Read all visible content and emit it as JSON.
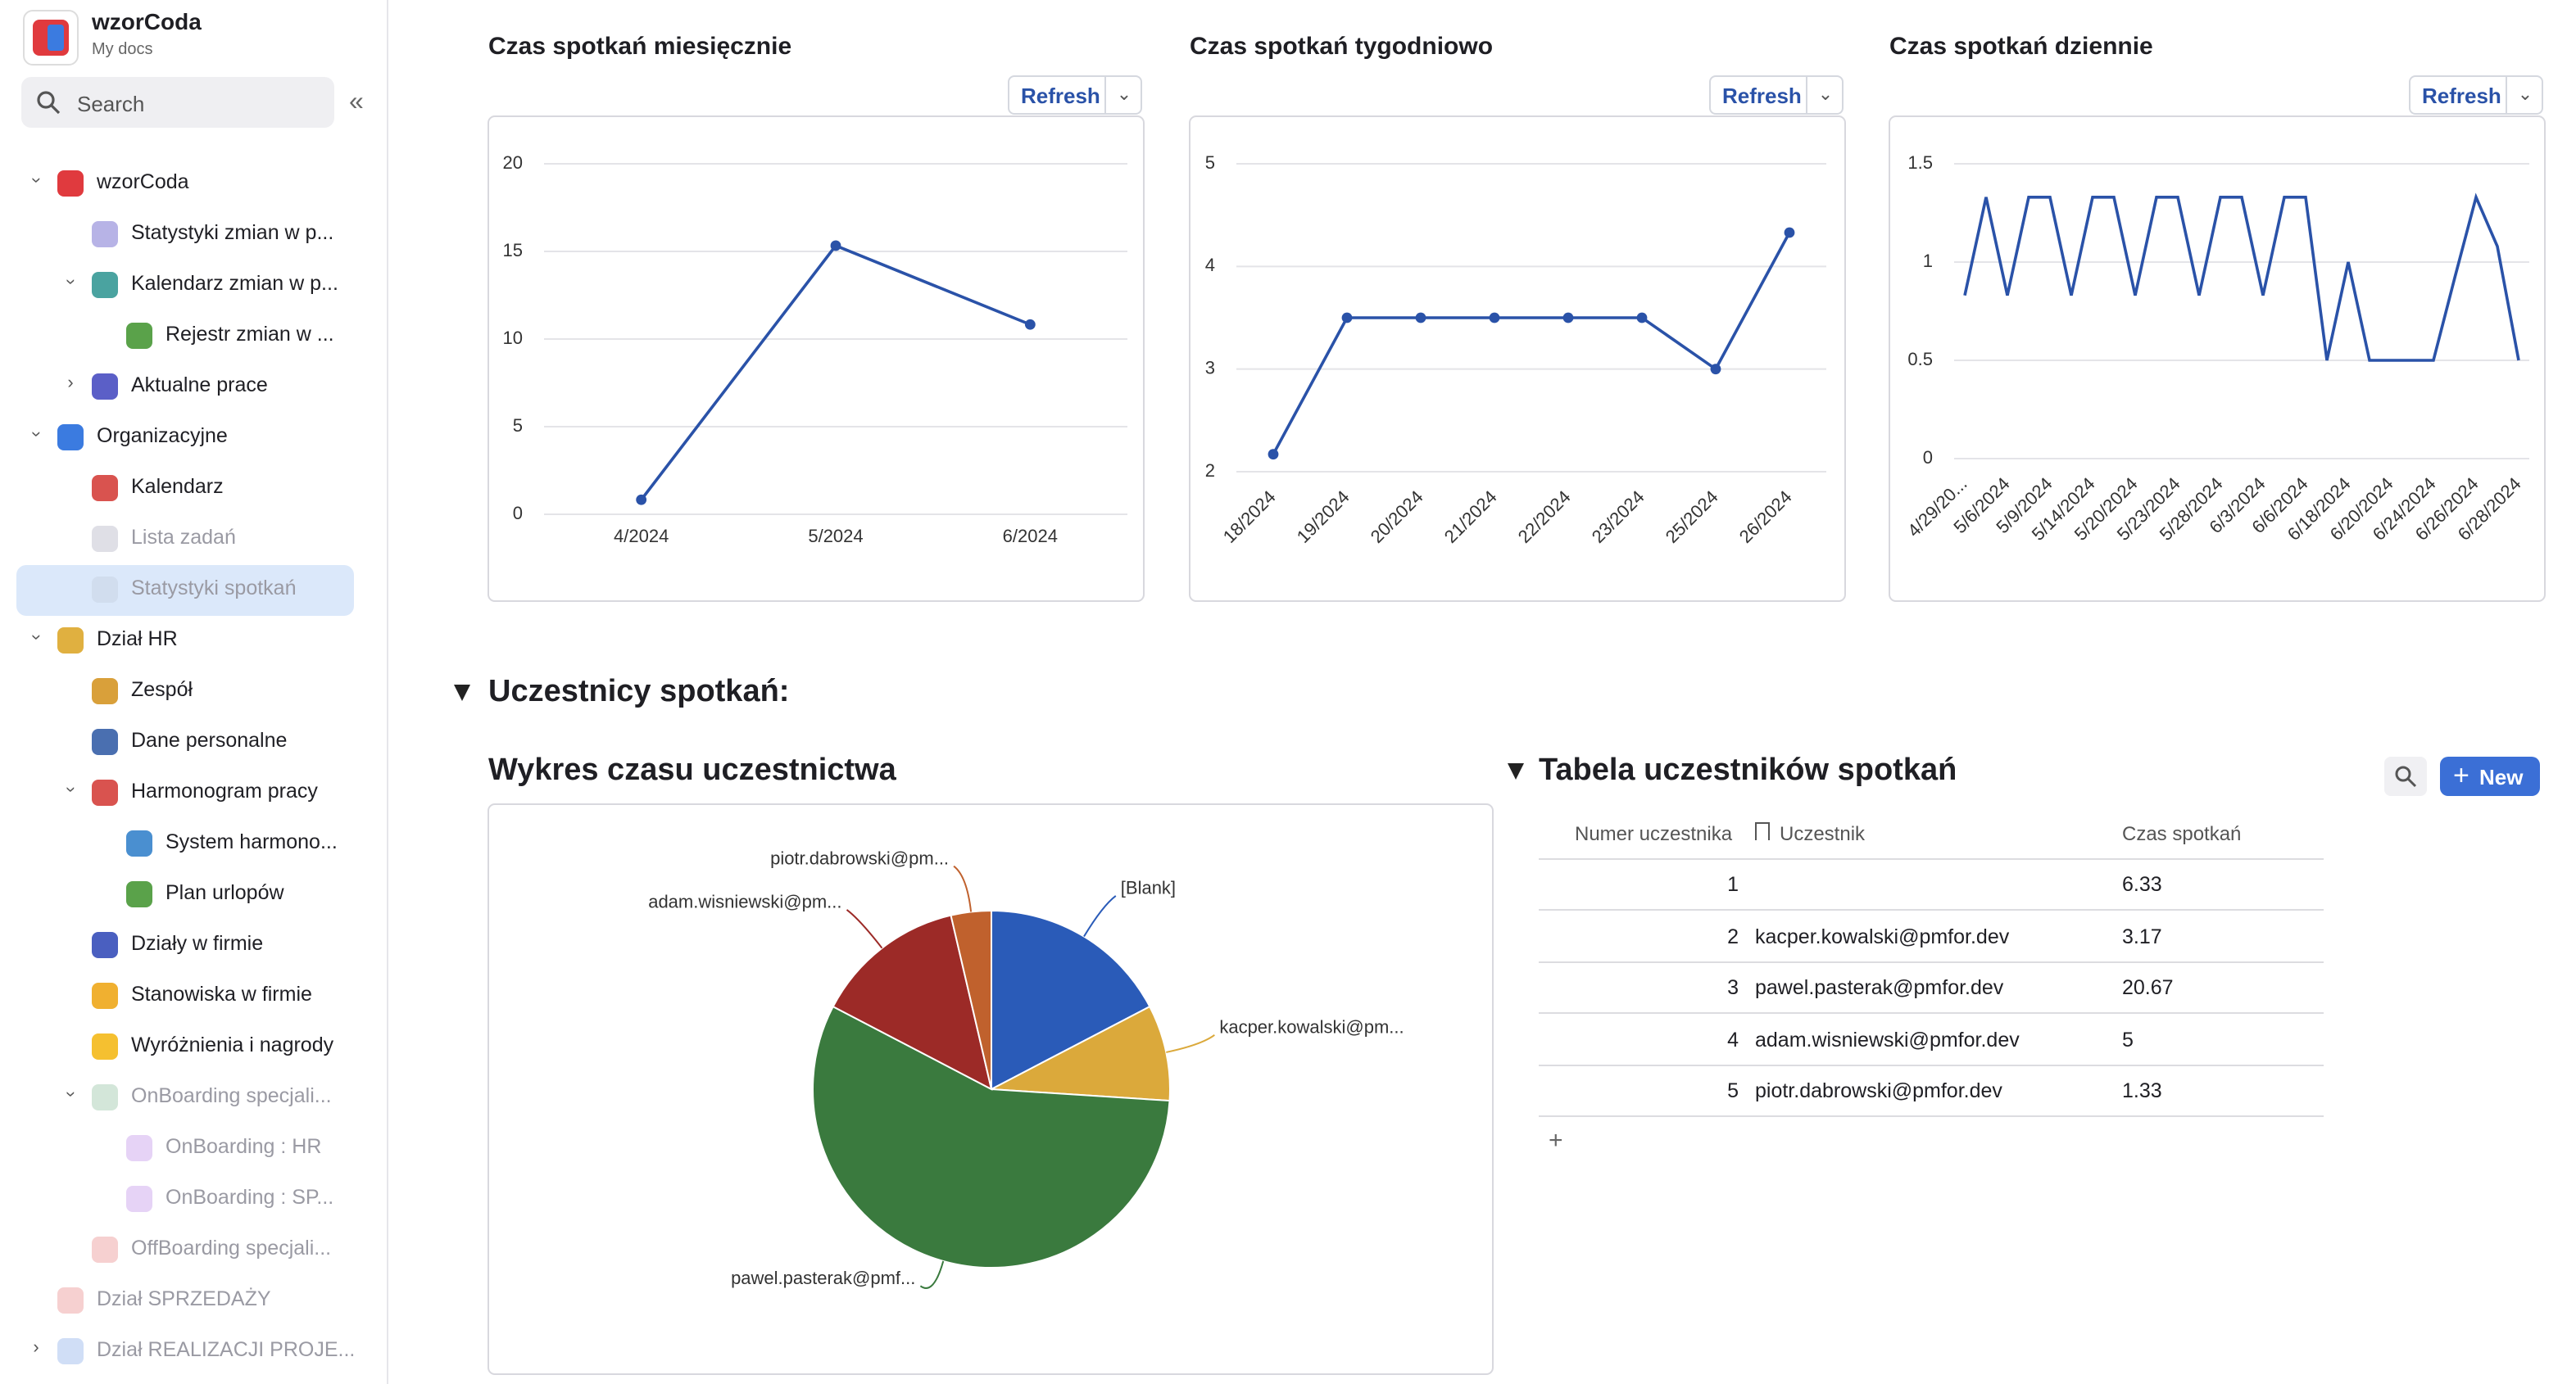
{
  "sidebar": {
    "workspace": "wzorCoda",
    "subtitle": "My docs",
    "search": "Search",
    "items": [
      {
        "label": "wzorCoda",
        "level": 0,
        "expander": "open",
        "icon": "#e03a3e"
      },
      {
        "label": "Statystyki zmian w p...",
        "level": 1,
        "icon": "#b7b3e6"
      },
      {
        "label": "Kalendarz zmian w p...",
        "level": 1,
        "expander": "open",
        "icon": "#4aa3a0"
      },
      {
        "label": "Rejestr zmian w ...",
        "level": 2,
        "icon": "#5aa24a"
      },
      {
        "label": "Aktualne prace",
        "level": 1,
        "expander": "closed",
        "icon": "#5b5fc7"
      },
      {
        "label": "Organizacyjne",
        "level": 0,
        "expander": "open",
        "icon": "#3b7be0"
      },
      {
        "label": "Kalendarz",
        "level": 1,
        "icon": "#d9534f"
      },
      {
        "label": "Lista zadań",
        "level": 1,
        "dim": true,
        "icon": "#c9c9d6"
      },
      {
        "label": "Statystyki spotkań",
        "level": 1,
        "dim": true,
        "selected": true,
        "icon": "#c9d6e6"
      },
      {
        "label": "Dział HR",
        "level": 0,
        "expander": "open",
        "icon": "#e0b040"
      },
      {
        "label": "Zespół",
        "level": 1,
        "icon": "#d9a03a"
      },
      {
        "label": "Dane personalne",
        "level": 1,
        "icon": "#4a6fb0"
      },
      {
        "label": "Harmonogram pracy",
        "level": 1,
        "expander": "open",
        "icon": "#d9534f"
      },
      {
        "label": "System harmono...",
        "level": 2,
        "icon": "#4a8fd0"
      },
      {
        "label": "Plan urlopów",
        "level": 2,
        "icon": "#5aa24a"
      },
      {
        "label": "Działy w firmie",
        "level": 1,
        "icon": "#4a5fc0"
      },
      {
        "label": "Stanowiska w firmie",
        "level": 1,
        "icon": "#f0b030"
      },
      {
        "label": "Wyróżnienia i nagrody",
        "level": 1,
        "icon": "#f5c030"
      },
      {
        "label": "OnBoarding specjali...",
        "level": 1,
        "expander": "open",
        "dim": true,
        "icon": "#b6d6c0"
      },
      {
        "label": "OnBoarding : HR",
        "level": 2,
        "dim": true,
        "icon": "#d6b6f0"
      },
      {
        "label": "OnBoarding : SP...",
        "level": 2,
        "dim": true,
        "icon": "#d6b6f0"
      },
      {
        "label": "OffBoarding specjali...",
        "level": 1,
        "dim": true,
        "icon": "#f0b0b0"
      },
      {
        "label": "Dział SPRZEDAŻY",
        "level": 0,
        "dim": true,
        "icon": "#f0b0b0"
      },
      {
        "label": "Dział REALIZACJI PROJE...",
        "level": 0,
        "expander": "closed",
        "dim": true,
        "icon": "#b0c8f0"
      }
    ]
  },
  "refresh": "Refresh",
  "section": "Uczestnicy spotkań:",
  "chart_data": [
    {
      "type": "line",
      "title": "Czas spotkań miesięcznie",
      "color": "#2a52a8",
      "markers": true,
      "grid": true,
      "categories": [
        "4/2024",
        "5/2024",
        "6/2024"
      ],
      "values": [
        0.83,
        15.33,
        10.83
      ],
      "ylim": [
        0,
        20
      ],
      "yticks": [
        0,
        5,
        10,
        15,
        20
      ]
    },
    {
      "type": "line",
      "title": "Czas spotkań tygodniowo",
      "color": "#2a52a8",
      "markers": true,
      "grid": true,
      "categories": [
        "18/2024",
        "19/2024",
        "20/2024",
        "21/2024",
        "22/2024",
        "23/2024",
        "25/2024",
        "26/2024"
      ],
      "values": [
        2.17,
        3.5,
        3.5,
        3.5,
        3.5,
        3.5,
        3,
        4.33
      ],
      "ylim": [
        2,
        5
      ],
      "yticks": [
        2,
        3,
        4,
        5
      ]
    },
    {
      "type": "line",
      "title": "Czas spotkań dziennie",
      "color": "#2a52a8",
      "markers": false,
      "grid": true,
      "categories": [
        "4/29/20...",
        null,
        "5/6/2024",
        null,
        "5/9/2024",
        null,
        "5/14/2024",
        null,
        "5/20/2024",
        null,
        "5/23/2024",
        null,
        "5/28/2024",
        null,
        "6/3/2024",
        null,
        "6/6/2024",
        null,
        "6/18/2024",
        null,
        "6/20/2024",
        null,
        "6/24/2024",
        null,
        "6/26/2024",
        null,
        "6/28/2024"
      ],
      "values": [
        0.83,
        1.33,
        0.83,
        1.33,
        1.33,
        0.83,
        1.33,
        1.33,
        0.83,
        1.33,
        1.33,
        0.83,
        1.33,
        1.33,
        0.83,
        1.33,
        1.33,
        0.5,
        1,
        0.5,
        0.5,
        0.5,
        0.5,
        0.92,
        1.33,
        1.08,
        0.5
      ],
      "ylim": [
        0,
        1.5
      ],
      "yticks": [
        0,
        0.5,
        1,
        1.5
      ]
    },
    {
      "type": "pie",
      "title": "Wykres czasu uczestnictwa",
      "categories": [
        "[Blank]",
        "kacper.kowalski@pm...",
        "pawel.pasterak@pmf...",
        "adam.wisniewski@pm...",
        "piotr.dabrowski@pm..."
      ],
      "values": [
        6.33,
        3.17,
        20.67,
        5,
        1.33
      ],
      "colors": [
        "#2a5bb8",
        "#dba93b",
        "#3a7a3e",
        "#9c2a27",
        "#c0612d"
      ]
    }
  ],
  "table": {
    "title": "Tabela uczestników spotkań",
    "new": "New",
    "columns": [
      "Numer uczestnika",
      "Uczestnik",
      "Czas spotkań"
    ],
    "rows": [
      [
        1,
        null,
        6.33
      ],
      [
        2,
        "kacper.kowalski@pmfor.dev",
        3.17
      ],
      [
        3,
        "pawel.pasterak@pmfor.dev",
        20.67
      ],
      [
        4,
        "adam.wisniewski@pmfor.dev",
        5
      ],
      [
        5,
        "piotr.dabrowski@pmfor.dev",
        1.33
      ]
    ]
  }
}
